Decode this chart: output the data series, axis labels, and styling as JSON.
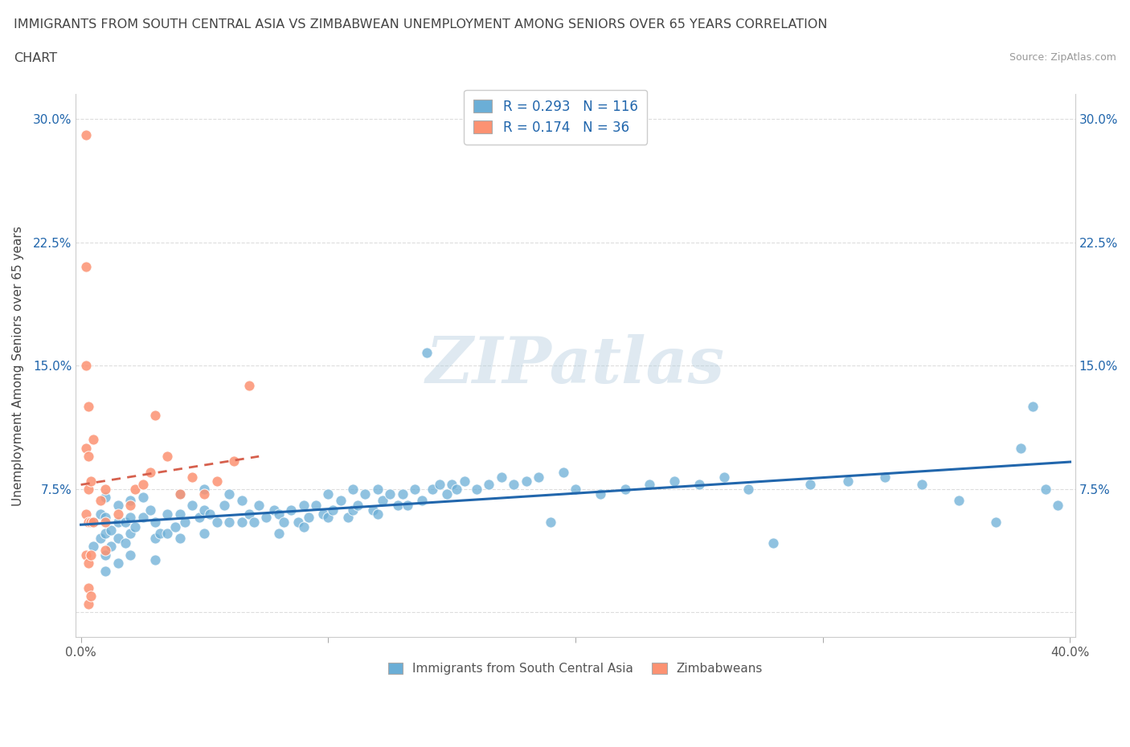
{
  "title_line1": "IMMIGRANTS FROM SOUTH CENTRAL ASIA VS ZIMBABWEAN UNEMPLOYMENT AMONG SENIORS OVER 65 YEARS CORRELATION",
  "title_line2": "CHART",
  "source": "Source: ZipAtlas.com",
  "xlabel_blue": "Immigrants from South Central Asia",
  "xlabel_pink": "Zimbabweans",
  "ylabel": "Unemployment Among Seniors over 65 years",
  "xmin": 0.0,
  "xmax": 0.4,
  "ymin": -0.015,
  "ymax": 0.315,
  "yticks": [
    0.0,
    0.075,
    0.15,
    0.225,
    0.3
  ],
  "ytick_labels": [
    "",
    "7.5%",
    "15.0%",
    "22.5%",
    "30.0%"
  ],
  "xticks": [
    0.0,
    0.1,
    0.2,
    0.3,
    0.4
  ],
  "xtick_labels": [
    "0.0%",
    "",
    "",
    "",
    "40.0%"
  ],
  "blue_R": 0.293,
  "blue_N": 116,
  "pink_R": 0.174,
  "pink_N": 36,
  "blue_color": "#6baed6",
  "pink_color": "#fc9272",
  "blue_line_color": "#2166ac",
  "pink_line_color": "#d6604d",
  "watermark": "ZIPatlas",
  "blue_scatter_x": [
    0.005,
    0.005,
    0.008,
    0.008,
    0.01,
    0.01,
    0.01,
    0.01,
    0.01,
    0.012,
    0.012,
    0.015,
    0.015,
    0.015,
    0.015,
    0.018,
    0.018,
    0.02,
    0.02,
    0.02,
    0.02,
    0.022,
    0.025,
    0.025,
    0.028,
    0.03,
    0.03,
    0.03,
    0.032,
    0.035,
    0.035,
    0.038,
    0.04,
    0.04,
    0.04,
    0.042,
    0.045,
    0.048,
    0.05,
    0.05,
    0.05,
    0.052,
    0.055,
    0.058,
    0.06,
    0.06,
    0.065,
    0.065,
    0.068,
    0.07,
    0.072,
    0.075,
    0.078,
    0.08,
    0.08,
    0.082,
    0.085,
    0.088,
    0.09,
    0.09,
    0.092,
    0.095,
    0.098,
    0.1,
    0.1,
    0.102,
    0.105,
    0.108,
    0.11,
    0.11,
    0.112,
    0.115,
    0.118,
    0.12,
    0.12,
    0.122,
    0.125,
    0.128,
    0.13,
    0.132,
    0.135,
    0.138,
    0.14,
    0.142,
    0.145,
    0.148,
    0.15,
    0.152,
    0.155,
    0.16,
    0.165,
    0.17,
    0.175,
    0.18,
    0.185,
    0.19,
    0.195,
    0.2,
    0.21,
    0.22,
    0.23,
    0.24,
    0.25,
    0.26,
    0.27,
    0.28,
    0.295,
    0.31,
    0.325,
    0.34,
    0.355,
    0.37,
    0.38,
    0.385,
    0.39,
    0.395
  ],
  "blue_scatter_y": [
    0.055,
    0.04,
    0.06,
    0.045,
    0.07,
    0.058,
    0.048,
    0.035,
    0.025,
    0.05,
    0.04,
    0.065,
    0.055,
    0.045,
    0.03,
    0.055,
    0.042,
    0.068,
    0.058,
    0.048,
    0.035,
    0.052,
    0.07,
    0.058,
    0.062,
    0.055,
    0.045,
    0.032,
    0.048,
    0.06,
    0.048,
    0.052,
    0.072,
    0.06,
    0.045,
    0.055,
    0.065,
    0.058,
    0.075,
    0.062,
    0.048,
    0.06,
    0.055,
    0.065,
    0.072,
    0.055,
    0.068,
    0.055,
    0.06,
    0.055,
    0.065,
    0.058,
    0.062,
    0.06,
    0.048,
    0.055,
    0.062,
    0.055,
    0.065,
    0.052,
    0.058,
    0.065,
    0.06,
    0.072,
    0.058,
    0.062,
    0.068,
    0.058,
    0.075,
    0.062,
    0.065,
    0.072,
    0.062,
    0.075,
    0.06,
    0.068,
    0.072,
    0.065,
    0.072,
    0.065,
    0.075,
    0.068,
    0.158,
    0.075,
    0.078,
    0.072,
    0.078,
    0.075,
    0.08,
    0.075,
    0.078,
    0.082,
    0.078,
    0.08,
    0.082,
    0.055,
    0.085,
    0.075,
    0.072,
    0.075,
    0.078,
    0.08,
    0.078,
    0.082,
    0.075,
    0.042,
    0.078,
    0.08,
    0.082,
    0.078,
    0.068,
    0.055,
    0.1,
    0.125,
    0.075,
    0.065
  ],
  "pink_scatter_x": [
    0.002,
    0.002,
    0.002,
    0.002,
    0.002,
    0.002,
    0.003,
    0.003,
    0.003,
    0.003,
    0.003,
    0.003,
    0.003,
    0.004,
    0.004,
    0.004,
    0.004,
    0.005,
    0.005,
    0.008,
    0.01,
    0.01,
    0.01,
    0.015,
    0.02,
    0.022,
    0.025,
    0.028,
    0.03,
    0.035,
    0.04,
    0.045,
    0.05,
    0.055,
    0.062,
    0.068
  ],
  "pink_scatter_y": [
    0.29,
    0.21,
    0.15,
    0.1,
    0.06,
    0.035,
    0.125,
    0.095,
    0.075,
    0.055,
    0.03,
    0.015,
    0.005,
    0.08,
    0.055,
    0.035,
    0.01,
    0.105,
    0.055,
    0.068,
    0.075,
    0.055,
    0.038,
    0.06,
    0.065,
    0.075,
    0.078,
    0.085,
    0.12,
    0.095,
    0.072,
    0.082,
    0.072,
    0.08,
    0.092,
    0.138
  ]
}
